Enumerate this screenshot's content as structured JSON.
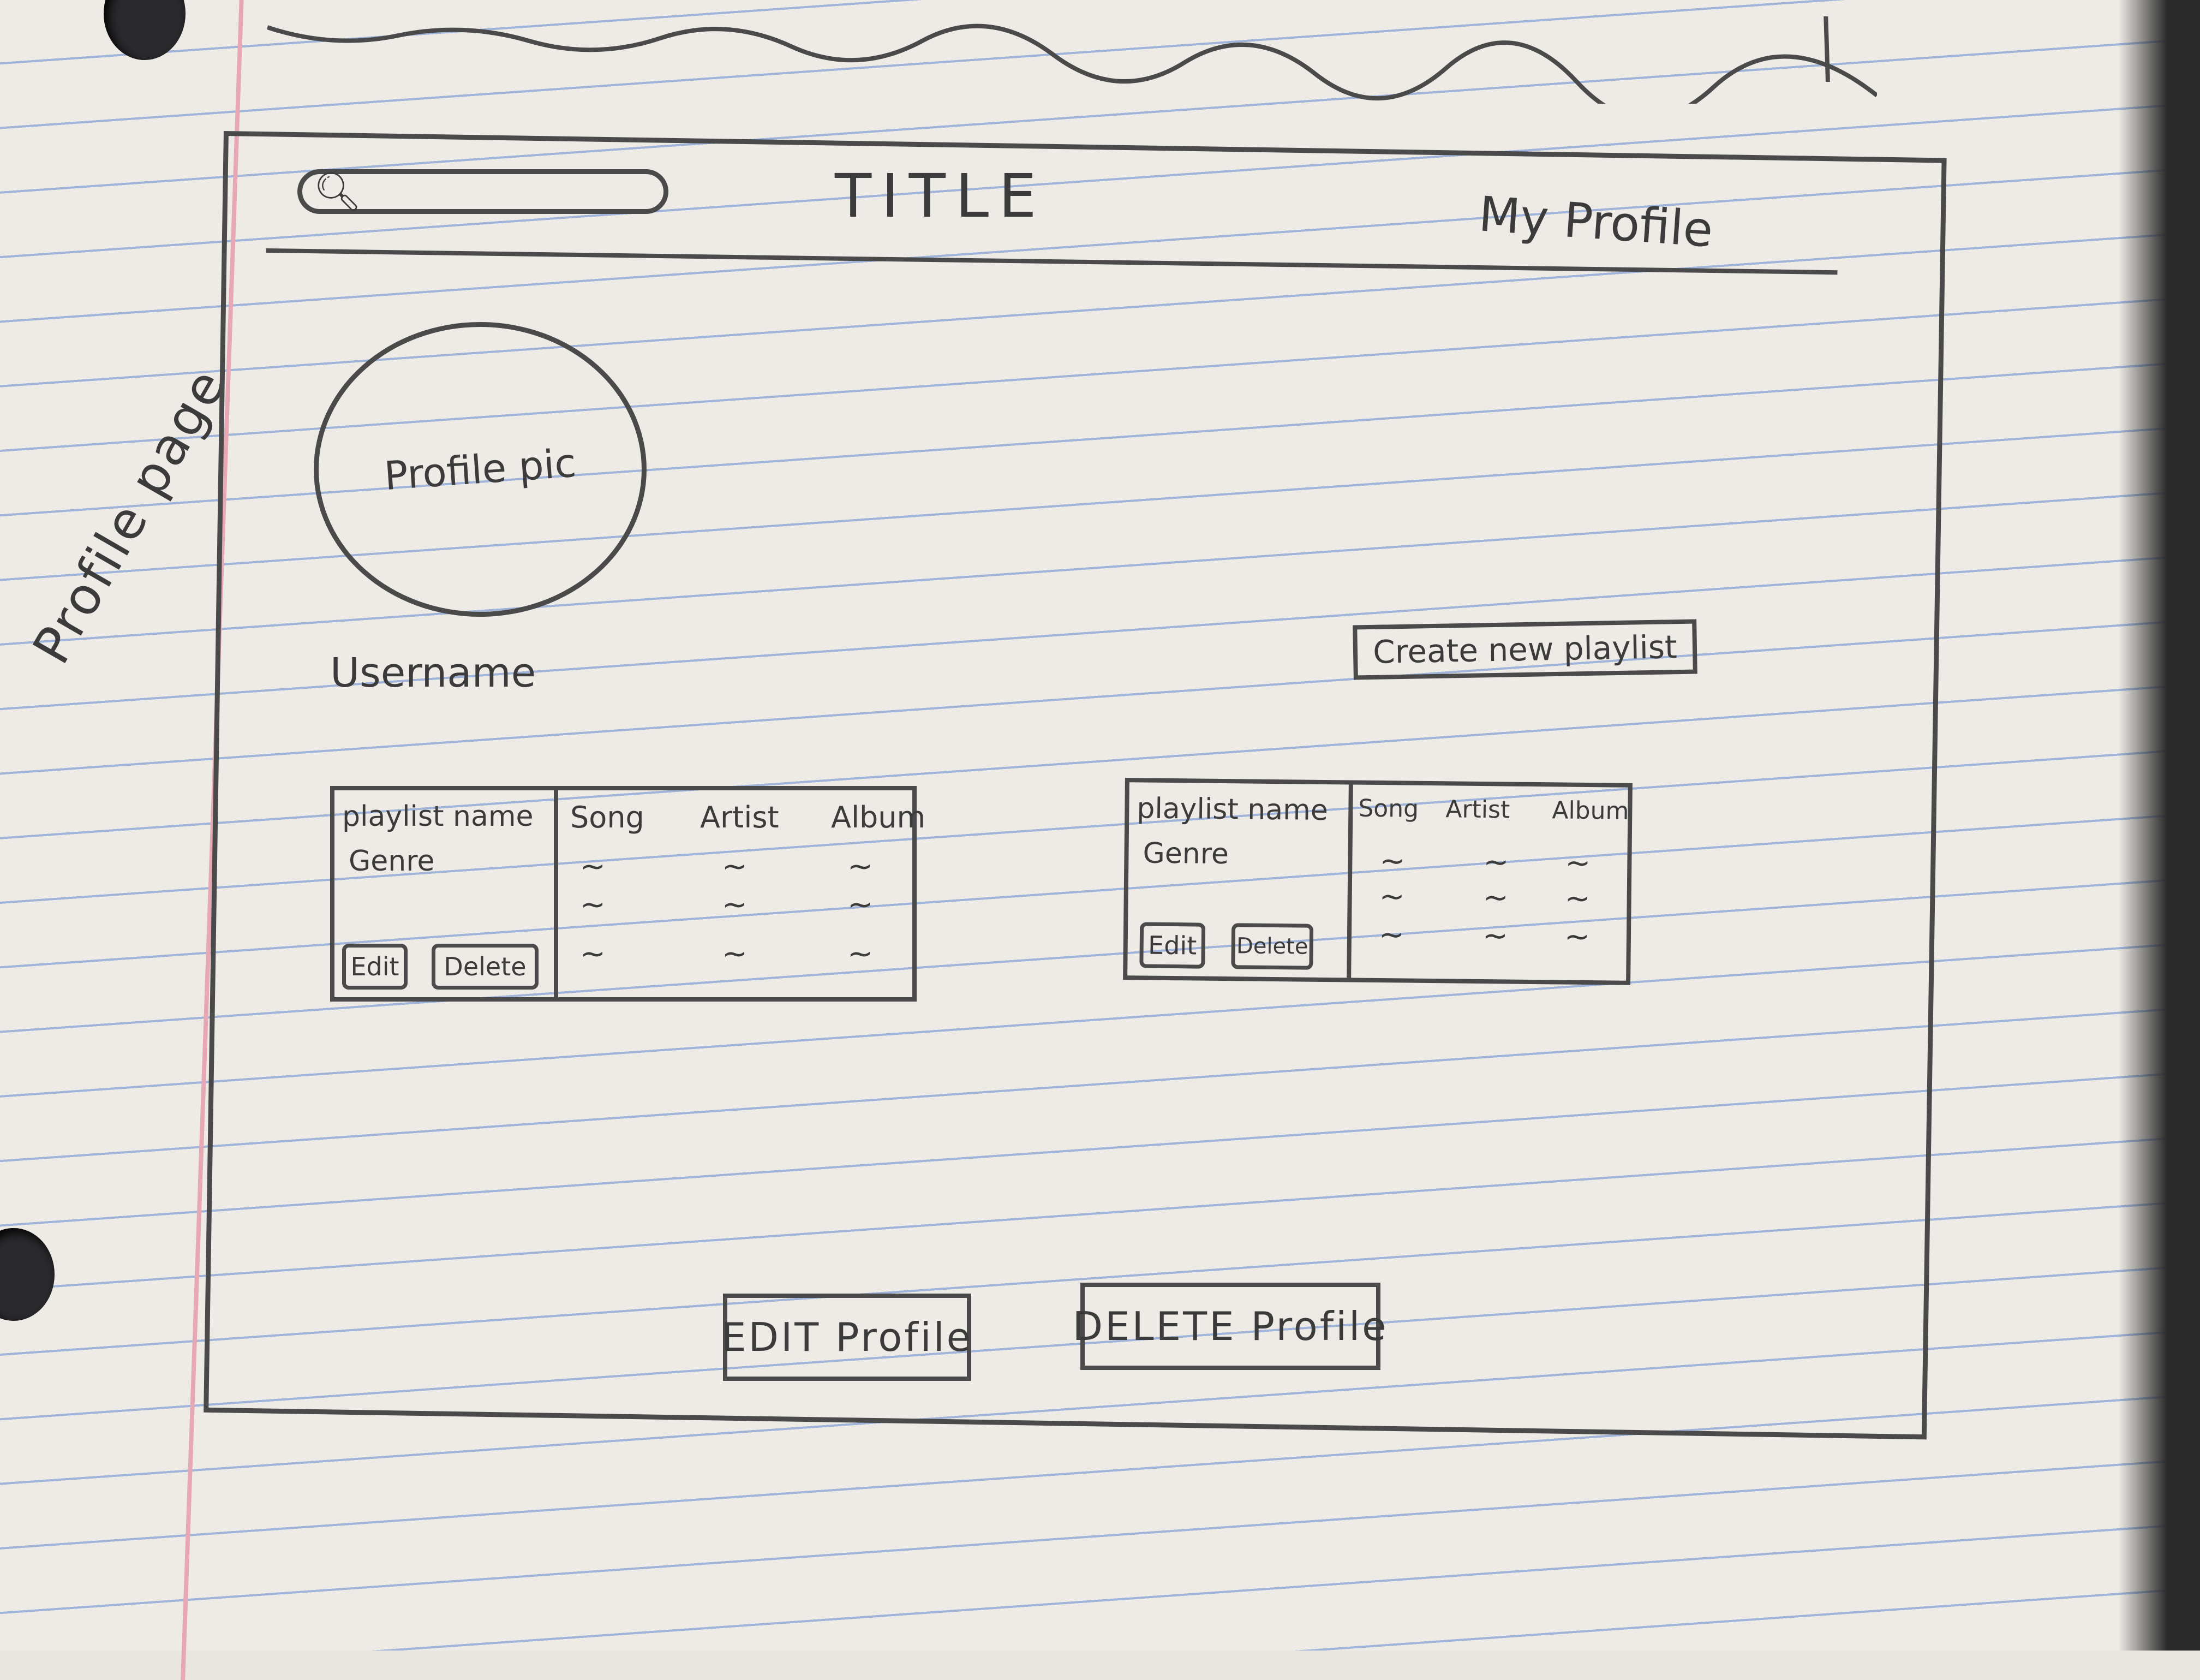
{
  "side_label": "Profile page",
  "header": {
    "title": "TITLE",
    "my_profile": "My Profile"
  },
  "icons": {
    "search": "search-icon"
  },
  "profile": {
    "picture_label": "Profile pic",
    "username": "Username"
  },
  "create_playlist_label": "Create new playlist",
  "playlists": [
    {
      "name": "playlist name",
      "genre": "Genre",
      "columns": [
        "Song",
        "Artist",
        "Album"
      ],
      "edit_label": "Edit",
      "delete_label": "Delete"
    },
    {
      "name": "playlist name",
      "genre": "Genre",
      "columns": [
        "Song",
        "Artist",
        "Album"
      ],
      "edit_label": "Edit",
      "delete_label": "Delete"
    }
  ],
  "footer": {
    "edit_profile_label": "EDIT Profile",
    "delete_profile_label": "DELETE Profile"
  }
}
